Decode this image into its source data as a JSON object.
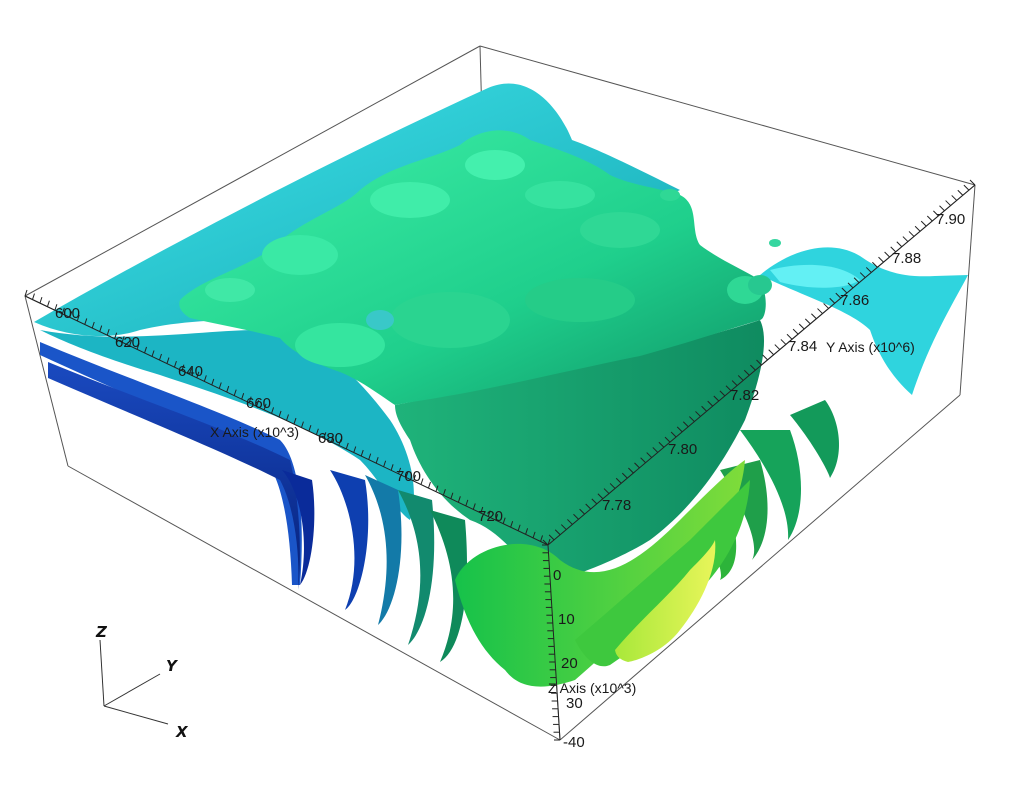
{
  "viewer": {
    "x_axis": {
      "title": "X Axis (x10^3)",
      "ticks": [
        "600",
        "620",
        "640",
        "660",
        "680",
        "700",
        "720"
      ]
    },
    "y_axis": {
      "title": "Y Axis (x10^6)",
      "ticks": [
        "7.78",
        "7.80",
        "7.82",
        "7.84",
        "7.86",
        "7.88",
        "7.90"
      ]
    },
    "z_axis": {
      "title": "Z Axis (x10^3)",
      "ticks": [
        "0",
        "10",
        "20",
        "30",
        "-40"
      ]
    },
    "triad": {
      "z": "Z",
      "y": "Y",
      "x": "X"
    },
    "colors": {
      "background": "#ffffff",
      "box": "#444444",
      "deep_blue": "#0b1f8a",
      "blue": "#1446b8",
      "teal": "#1aa6b8",
      "cyan": "#30d7e0",
      "green": "#1ec98a",
      "dark_green": "#129a6a",
      "lime": "#8de04a",
      "yellow": "#d8f23a"
    }
  }
}
